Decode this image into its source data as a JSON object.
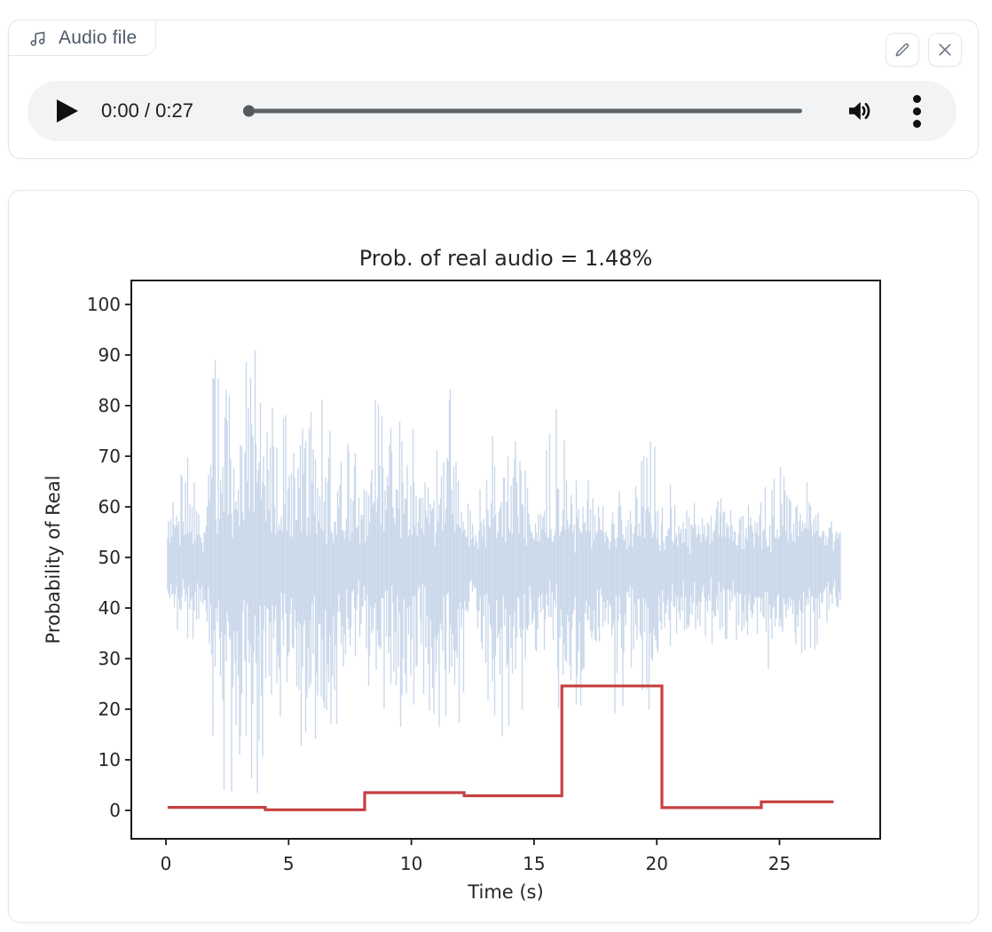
{
  "audio_card": {
    "tab_label": "Audio file",
    "player": {
      "time_display": "0:00 / 0:27",
      "current_time": "0:00",
      "duration": "0:27"
    }
  },
  "icons": {
    "tab": "music-note-icon",
    "edit": "pencil-icon",
    "close": "x-icon",
    "volume": "speaker-icon",
    "menu": "kebab-menu-icon"
  },
  "colors": {
    "card_border": "#e4e5ea",
    "player_bg": "#f1f3f4",
    "waveform": "#c9d8ea",
    "step_line": "#c64040",
    "chart_text": "#262626",
    "spine": "#1a1a1a"
  },
  "chart_data": {
    "type": "line",
    "title": "Prob. of real audio = 1.48%",
    "xlabel": "Time (s)",
    "ylabel": "Probability of Real",
    "xlim": [
      -1.41,
      29.1
    ],
    "ylim": [
      -5.6,
      104.7
    ],
    "xticks": [
      0,
      5,
      10,
      15,
      20,
      25
    ],
    "yticks": [
      0,
      10,
      20,
      30,
      40,
      50,
      60,
      70,
      80,
      90,
      100
    ],
    "grid": false,
    "legend": "none",
    "series": [
      {
        "name": "audio-waveform",
        "kind": "waveform-envelope",
        "color": "#c9d8ea",
        "center": 48.5,
        "t_start": 0,
        "t_step": 0.5,
        "t_end": 27.5,
        "seed": 11,
        "upper": [
          58,
          73,
          70,
          55,
          93,
          88,
          87,
          100,
          86,
          80,
          78,
          85,
          88,
          80,
          70,
          74,
          66,
          83,
          81,
          77,
          76,
          77,
          73,
          86,
          78,
          58,
          70,
          77,
          76,
          75,
          73,
          72,
          80,
          68,
          66,
          64,
          66,
          64,
          64,
          79,
          71,
          65,
          62,
          60,
          62,
          67,
          60,
          60,
          62,
          66,
          69,
          68,
          68,
          62,
          57,
          55
        ],
        "lower": [
          40,
          28,
          30,
          42,
          7,
          0.5,
          9,
          1,
          1,
          15,
          22,
          10,
          15,
          11,
          18,
          26,
          32,
          16,
          21,
          14,
          15,
          22,
          14,
          20,
          15,
          40,
          14,
          10,
          15,
          19,
          24,
          26,
          20,
          23,
          17,
          26,
          22,
          18,
          26,
          13,
          20,
          30,
          32,
          34,
          31,
          32,
          34,
          31,
          29,
          26,
          30,
          29,
          30,
          32,
          38,
          40
        ]
      },
      {
        "name": "segment-probability",
        "kind": "step",
        "color": "#c64040",
        "line_width": 3.2,
        "boundaries": [
          0.07,
          4.05,
          8.1,
          12.15,
          16.13,
          20.21,
          24.26,
          27.2
        ],
        "values": [
          0.6,
          0.12,
          3.5,
          2.9,
          24.6,
          0.55,
          1.7
        ]
      }
    ]
  }
}
